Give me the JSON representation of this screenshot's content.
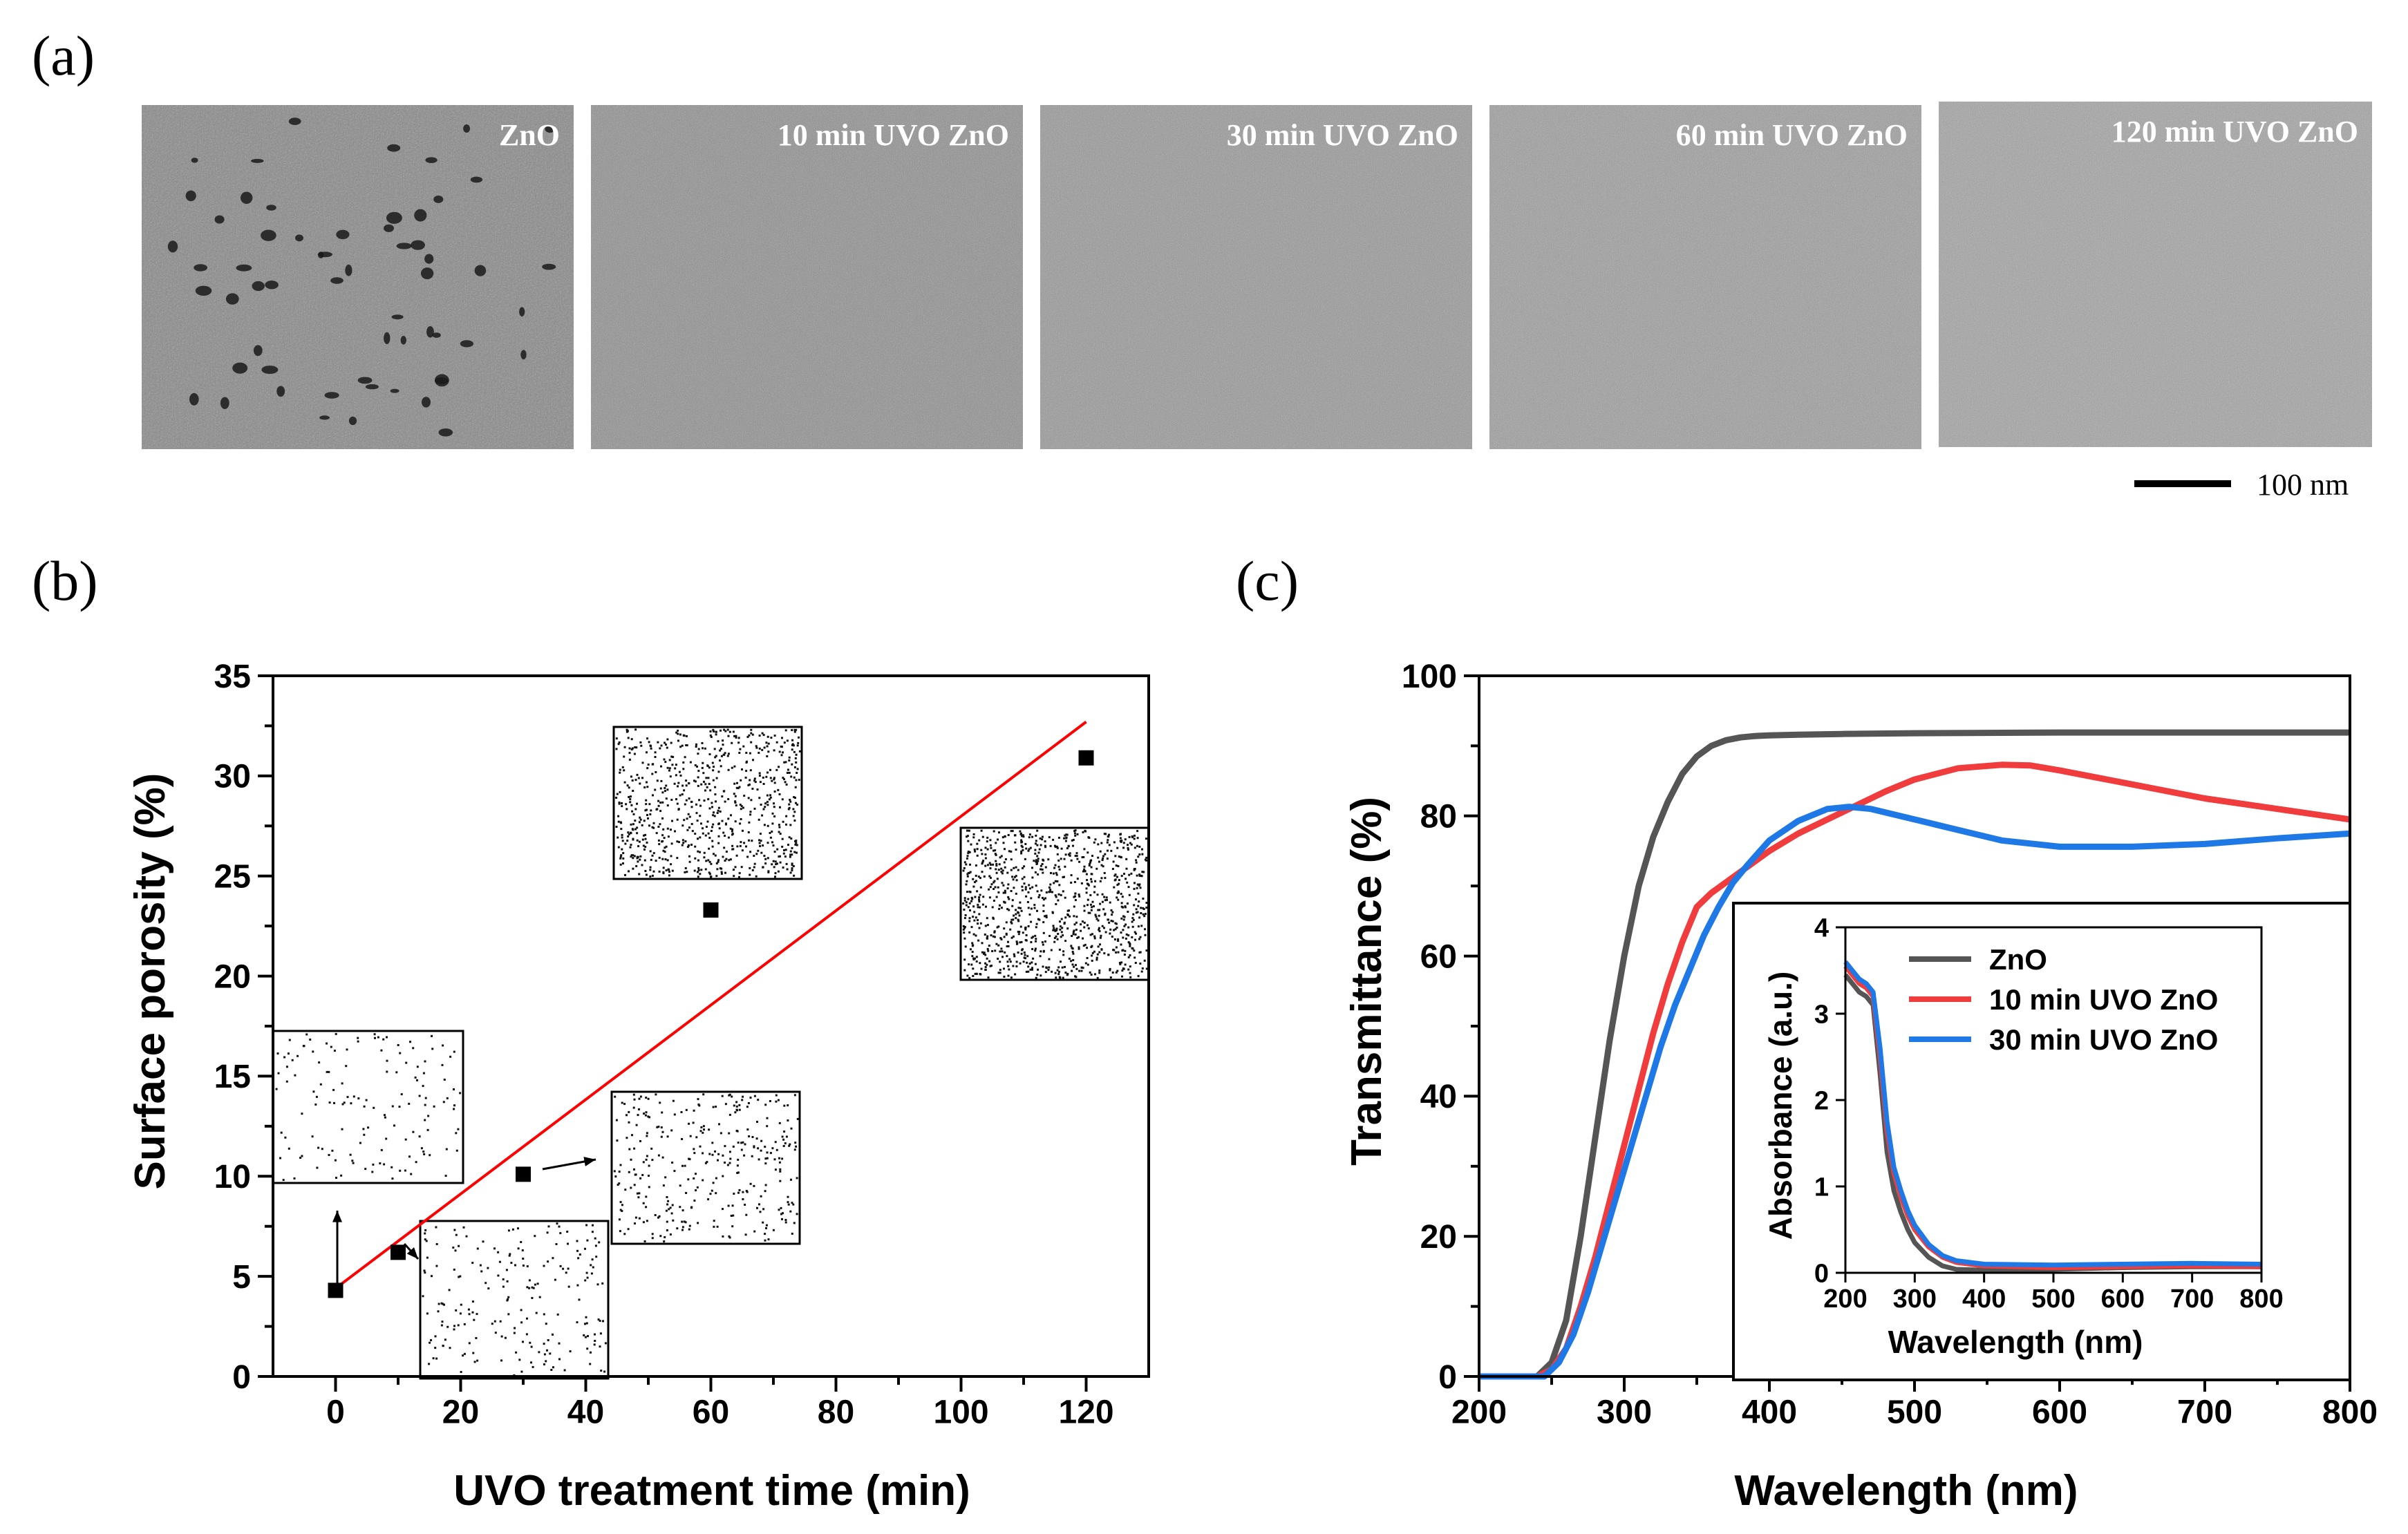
{
  "panel_labels": {
    "a": "(a)",
    "b": "(b)",
    "c": "(c)"
  },
  "sem_images": {
    "labels": [
      "ZnO",
      "10 min UVO ZnO",
      "30 min UVO ZnO",
      "60 min UVO ZnO",
      "120 min UVO ZnO"
    ],
    "scale_bar": "100 nm"
  },
  "colors": {
    "ZnO": "#555555",
    "10 min UVO ZnO": "#f03c3c",
    "30 min UVO ZnO": "#1e78e6",
    "fit": "#ff0000",
    "marker": "#000000"
  },
  "chart_data": [
    {
      "id": "b",
      "type": "scatter",
      "xlabel": "UVO treatment time (min)",
      "ylabel": "Surface porosity (%)",
      "xlim": [
        -10,
        130
      ],
      "ylim": [
        0,
        35
      ],
      "xticks": [
        0,
        20,
        40,
        60,
        80,
        100,
        120
      ],
      "yticks": [
        0,
        5,
        10,
        15,
        20,
        25,
        30,
        35
      ],
      "x": [
        0,
        10,
        30,
        60,
        120
      ],
      "y": [
        4.3,
        6.2,
        10.1,
        23.3,
        30.9
      ],
      "fit_line": {
        "x": [
          0,
          120
        ],
        "y": [
          4.4,
          32.7
        ]
      },
      "porosity_insets": [
        {
          "sample": "ZnO",
          "porosity": 4.3
        },
        {
          "sample": "10 min UVO ZnO",
          "porosity": 6.2
        },
        {
          "sample": "30 min UVO ZnO",
          "porosity": 10.1
        },
        {
          "sample": "60 min UVO ZnO",
          "porosity": 23.3
        },
        {
          "sample": "120 min UVO ZnO",
          "porosity": 30.9
        }
      ]
    },
    {
      "id": "c",
      "type": "line",
      "xlabel": "Wavelength (nm)",
      "ylabel": "Transmittance (%)",
      "xlim": [
        200,
        800
      ],
      "ylim": [
        0,
        100
      ],
      "xticks": [
        200,
        300,
        400,
        500,
        600,
        700,
        800
      ],
      "yticks": [
        0,
        20,
        40,
        60,
        80,
        100
      ],
      "series": [
        {
          "name": "ZnO",
          "x": [
            200,
            240,
            250,
            260,
            270,
            280,
            290,
            300,
            310,
            320,
            330,
            340,
            350,
            360,
            370,
            380,
            390,
            400,
            420,
            450,
            500,
            600,
            700,
            800
          ],
          "y": [
            0,
            0,
            2,
            8,
            20,
            34,
            48,
            60,
            70,
            77,
            82,
            86,
            88.5,
            90,
            90.8,
            91.2,
            91.4,
            91.5,
            91.6,
            91.7,
            91.8,
            91.9,
            91.9,
            91.9
          ]
        },
        {
          "name": "10 min UVO ZnO",
          "x": [
            200,
            240,
            250,
            260,
            270,
            280,
            290,
            300,
            310,
            320,
            330,
            340,
            350,
            360,
            370,
            380,
            400,
            420,
            450,
            480,
            500,
            530,
            560,
            580,
            600,
            650,
            700,
            750,
            800
          ],
          "y": [
            0,
            0,
            1,
            4,
            10,
            17,
            25,
            33,
            41,
            49,
            56,
            62,
            67,
            69,
            70.5,
            72,
            75,
            77.5,
            80.5,
            83.5,
            85.2,
            86.8,
            87.3,
            87.2,
            86.5,
            84.5,
            82.5,
            81,
            79.5
          ]
        },
        {
          "name": "30 min UVO ZnO",
          "x": [
            200,
            245,
            255,
            265,
            275,
            285,
            295,
            305,
            315,
            325,
            335,
            345,
            355,
            365,
            375,
            385,
            400,
            420,
            440,
            455,
            470,
            500,
            530,
            560,
            600,
            650,
            700,
            750,
            800
          ],
          "y": [
            0,
            0,
            2,
            6,
            12,
            19,
            26,
            33,
            40,
            47,
            53,
            58,
            63,
            67,
            70.5,
            73,
            76.5,
            79.3,
            81,
            81.3,
            81,
            79.5,
            78,
            76.5,
            75.6,
            75.6,
            76,
            76.8,
            77.5
          ]
        }
      ]
    },
    {
      "id": "c-inset",
      "type": "line",
      "xlabel": "Wavelength (nm)",
      "ylabel": "Absorbance (a.u.)",
      "xlim": [
        200,
        800
      ],
      "ylim": [
        0,
        4
      ],
      "xticks": [
        200,
        300,
        400,
        500,
        600,
        700,
        800
      ],
      "yticks": [
        0,
        1,
        2,
        3,
        4
      ],
      "legend": "top-right",
      "series": [
        {
          "name": "ZnO",
          "x": [
            200,
            210,
            220,
            230,
            240,
            250,
            260,
            270,
            280,
            290,
            300,
            320,
            340,
            360,
            400,
            500,
            600,
            700,
            800
          ],
          "y": [
            3.45,
            3.35,
            3.25,
            3.2,
            3.1,
            2.3,
            1.4,
            0.95,
            0.7,
            0.5,
            0.35,
            0.18,
            0.08,
            0.04,
            0.03,
            0.04,
            0.06,
            0.07,
            0.07
          ]
        },
        {
          "name": "10 min UVO ZnO",
          "x": [
            200,
            210,
            220,
            230,
            240,
            250,
            260,
            270,
            280,
            290,
            300,
            320,
            340,
            360,
            400,
            500,
            600,
            700,
            800
          ],
          "y": [
            3.55,
            3.45,
            3.35,
            3.3,
            3.2,
            2.5,
            1.65,
            1.15,
            0.88,
            0.66,
            0.5,
            0.3,
            0.18,
            0.12,
            0.08,
            0.06,
            0.07,
            0.08,
            0.07
          ]
        },
        {
          "name": "30 min UVO ZnO",
          "x": [
            200,
            210,
            220,
            230,
            240,
            250,
            260,
            270,
            280,
            290,
            300,
            320,
            340,
            360,
            400,
            500,
            600,
            700,
            800
          ],
          "y": [
            3.6,
            3.5,
            3.4,
            3.35,
            3.25,
            2.6,
            1.75,
            1.22,
            0.95,
            0.72,
            0.55,
            0.33,
            0.2,
            0.14,
            0.1,
            0.09,
            0.1,
            0.11,
            0.1
          ]
        }
      ]
    }
  ]
}
